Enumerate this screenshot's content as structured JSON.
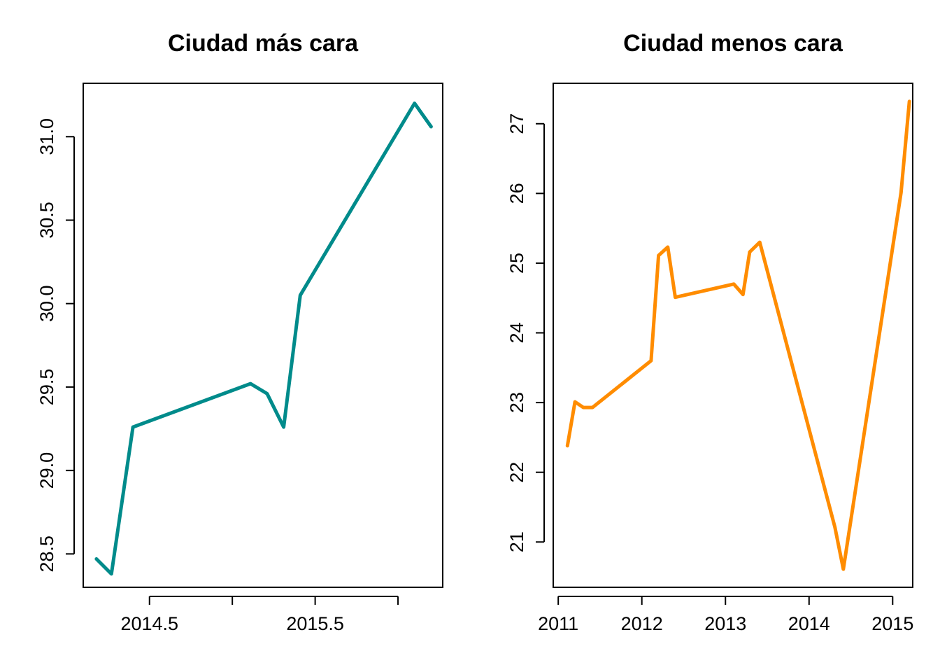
{
  "chart_data": [
    {
      "type": "line",
      "title": "Ciudad más cara",
      "xlabel": "",
      "ylabel": "",
      "xlim": [
        2014.1,
        2016.27
      ],
      "ylim": [
        28.3,
        31.32
      ],
      "x_ticks": [
        2014.5,
        2015.0,
        2015.5,
        2016.0
      ],
      "x_tick_labels": [
        "2014.5",
        "",
        "2015.5",
        ""
      ],
      "y_ticks": [
        28.5,
        29.0,
        29.5,
        30.0,
        30.5,
        31.0
      ],
      "y_tick_labels": [
        "28.5",
        "29.0",
        "29.5",
        "30.0",
        "30.5",
        "31.0"
      ],
      "color": "#008B8B",
      "series": [
        {
          "x": [
            2014.18,
            2014.27,
            2014.4,
            2015.11,
            2015.21,
            2015.31,
            2015.41,
            2016.1,
            2016.2
          ],
          "y": [
            28.47,
            28.38,
            29.26,
            29.52,
            29.46,
            29.26,
            30.05,
            31.2,
            31.06
          ]
        }
      ]
    },
    {
      "type": "line",
      "title": "Ciudad menos cara",
      "xlabel": "",
      "ylabel": "",
      "xlim": [
        2010.94,
        2015.24
      ],
      "ylim": [
        20.35,
        27.58
      ],
      "x_ticks": [
        2011,
        2012,
        2013,
        2014,
        2015
      ],
      "x_tick_labels": [
        "2011",
        "2012",
        "2013",
        "2014",
        "2015"
      ],
      "y_ticks": [
        21,
        22,
        23,
        24,
        25,
        26,
        27
      ],
      "y_tick_labels": [
        "21",
        "22",
        "23",
        "24",
        "25",
        "26",
        "27"
      ],
      "color": "#FF8C00",
      "series": [
        {
          "x": [
            2011.11,
            2011.2,
            2011.3,
            2011.41,
            2012.11,
            2012.2,
            2012.31,
            2012.4,
            2013.1,
            2013.21,
            2013.29,
            2013.41,
            2014.31,
            2014.41,
            2015.1,
            2015.2
          ],
          "y": [
            22.38,
            23.01,
            22.93,
            22.93,
            23.6,
            25.11,
            25.23,
            24.51,
            24.7,
            24.55,
            25.16,
            25.3,
            21.21,
            20.61,
            26.01,
            27.32
          ]
        }
      ]
    }
  ]
}
